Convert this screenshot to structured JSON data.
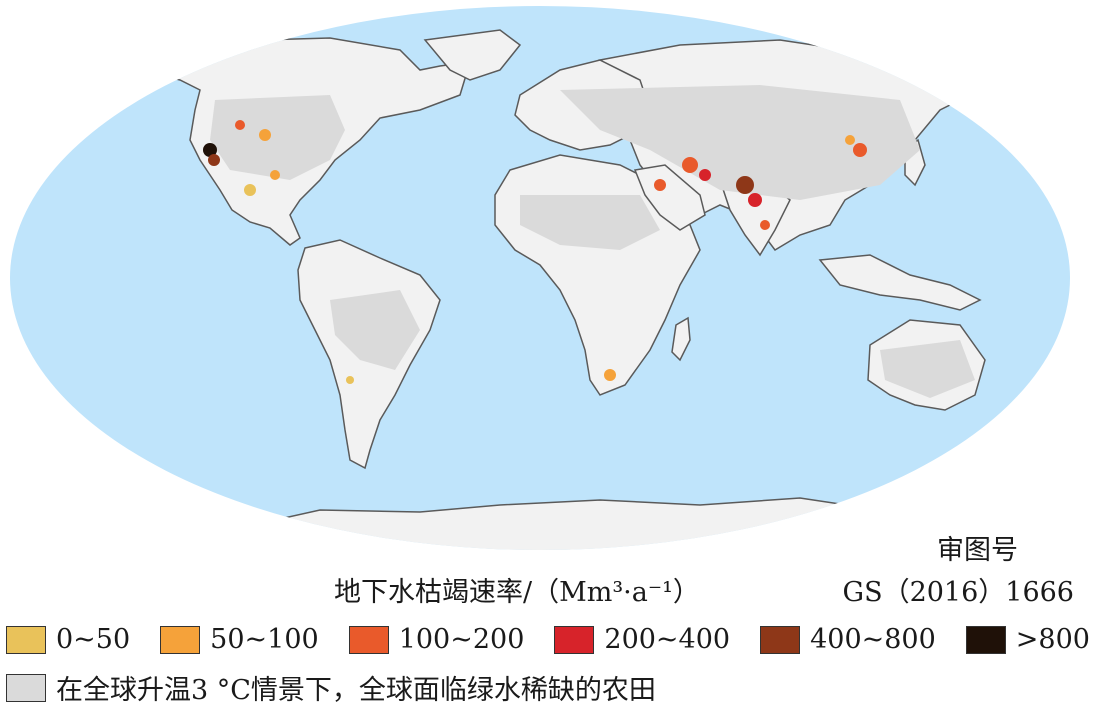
{
  "map": {
    "ocean_color": "#bfe4fb",
    "land_color": "#f2f2f2",
    "farmland_color": "#dadada",
    "border_color": "#5a5a5a"
  },
  "approval": {
    "label": "审图号",
    "number": "GS（2016）1666"
  },
  "legend": {
    "title": "地下水枯竭速率/（Mm³·a⁻¹）",
    "classes": [
      {
        "label": "0~50",
        "color": "#e9c25a"
      },
      {
        "label": "50~100",
        "color": "#f5a23a"
      },
      {
        "label": "100~200",
        "color": "#e95a2b"
      },
      {
        "label": "200~400",
        "color": "#d7232a"
      },
      {
        "label": "400~800",
        "color": "#8e3718"
      },
      {
        "label": ">800",
        "color": "#1f1108"
      }
    ],
    "farmland_label": "在全球升温3 °C情景下，全球面临绿水稀缺的农田"
  }
}
